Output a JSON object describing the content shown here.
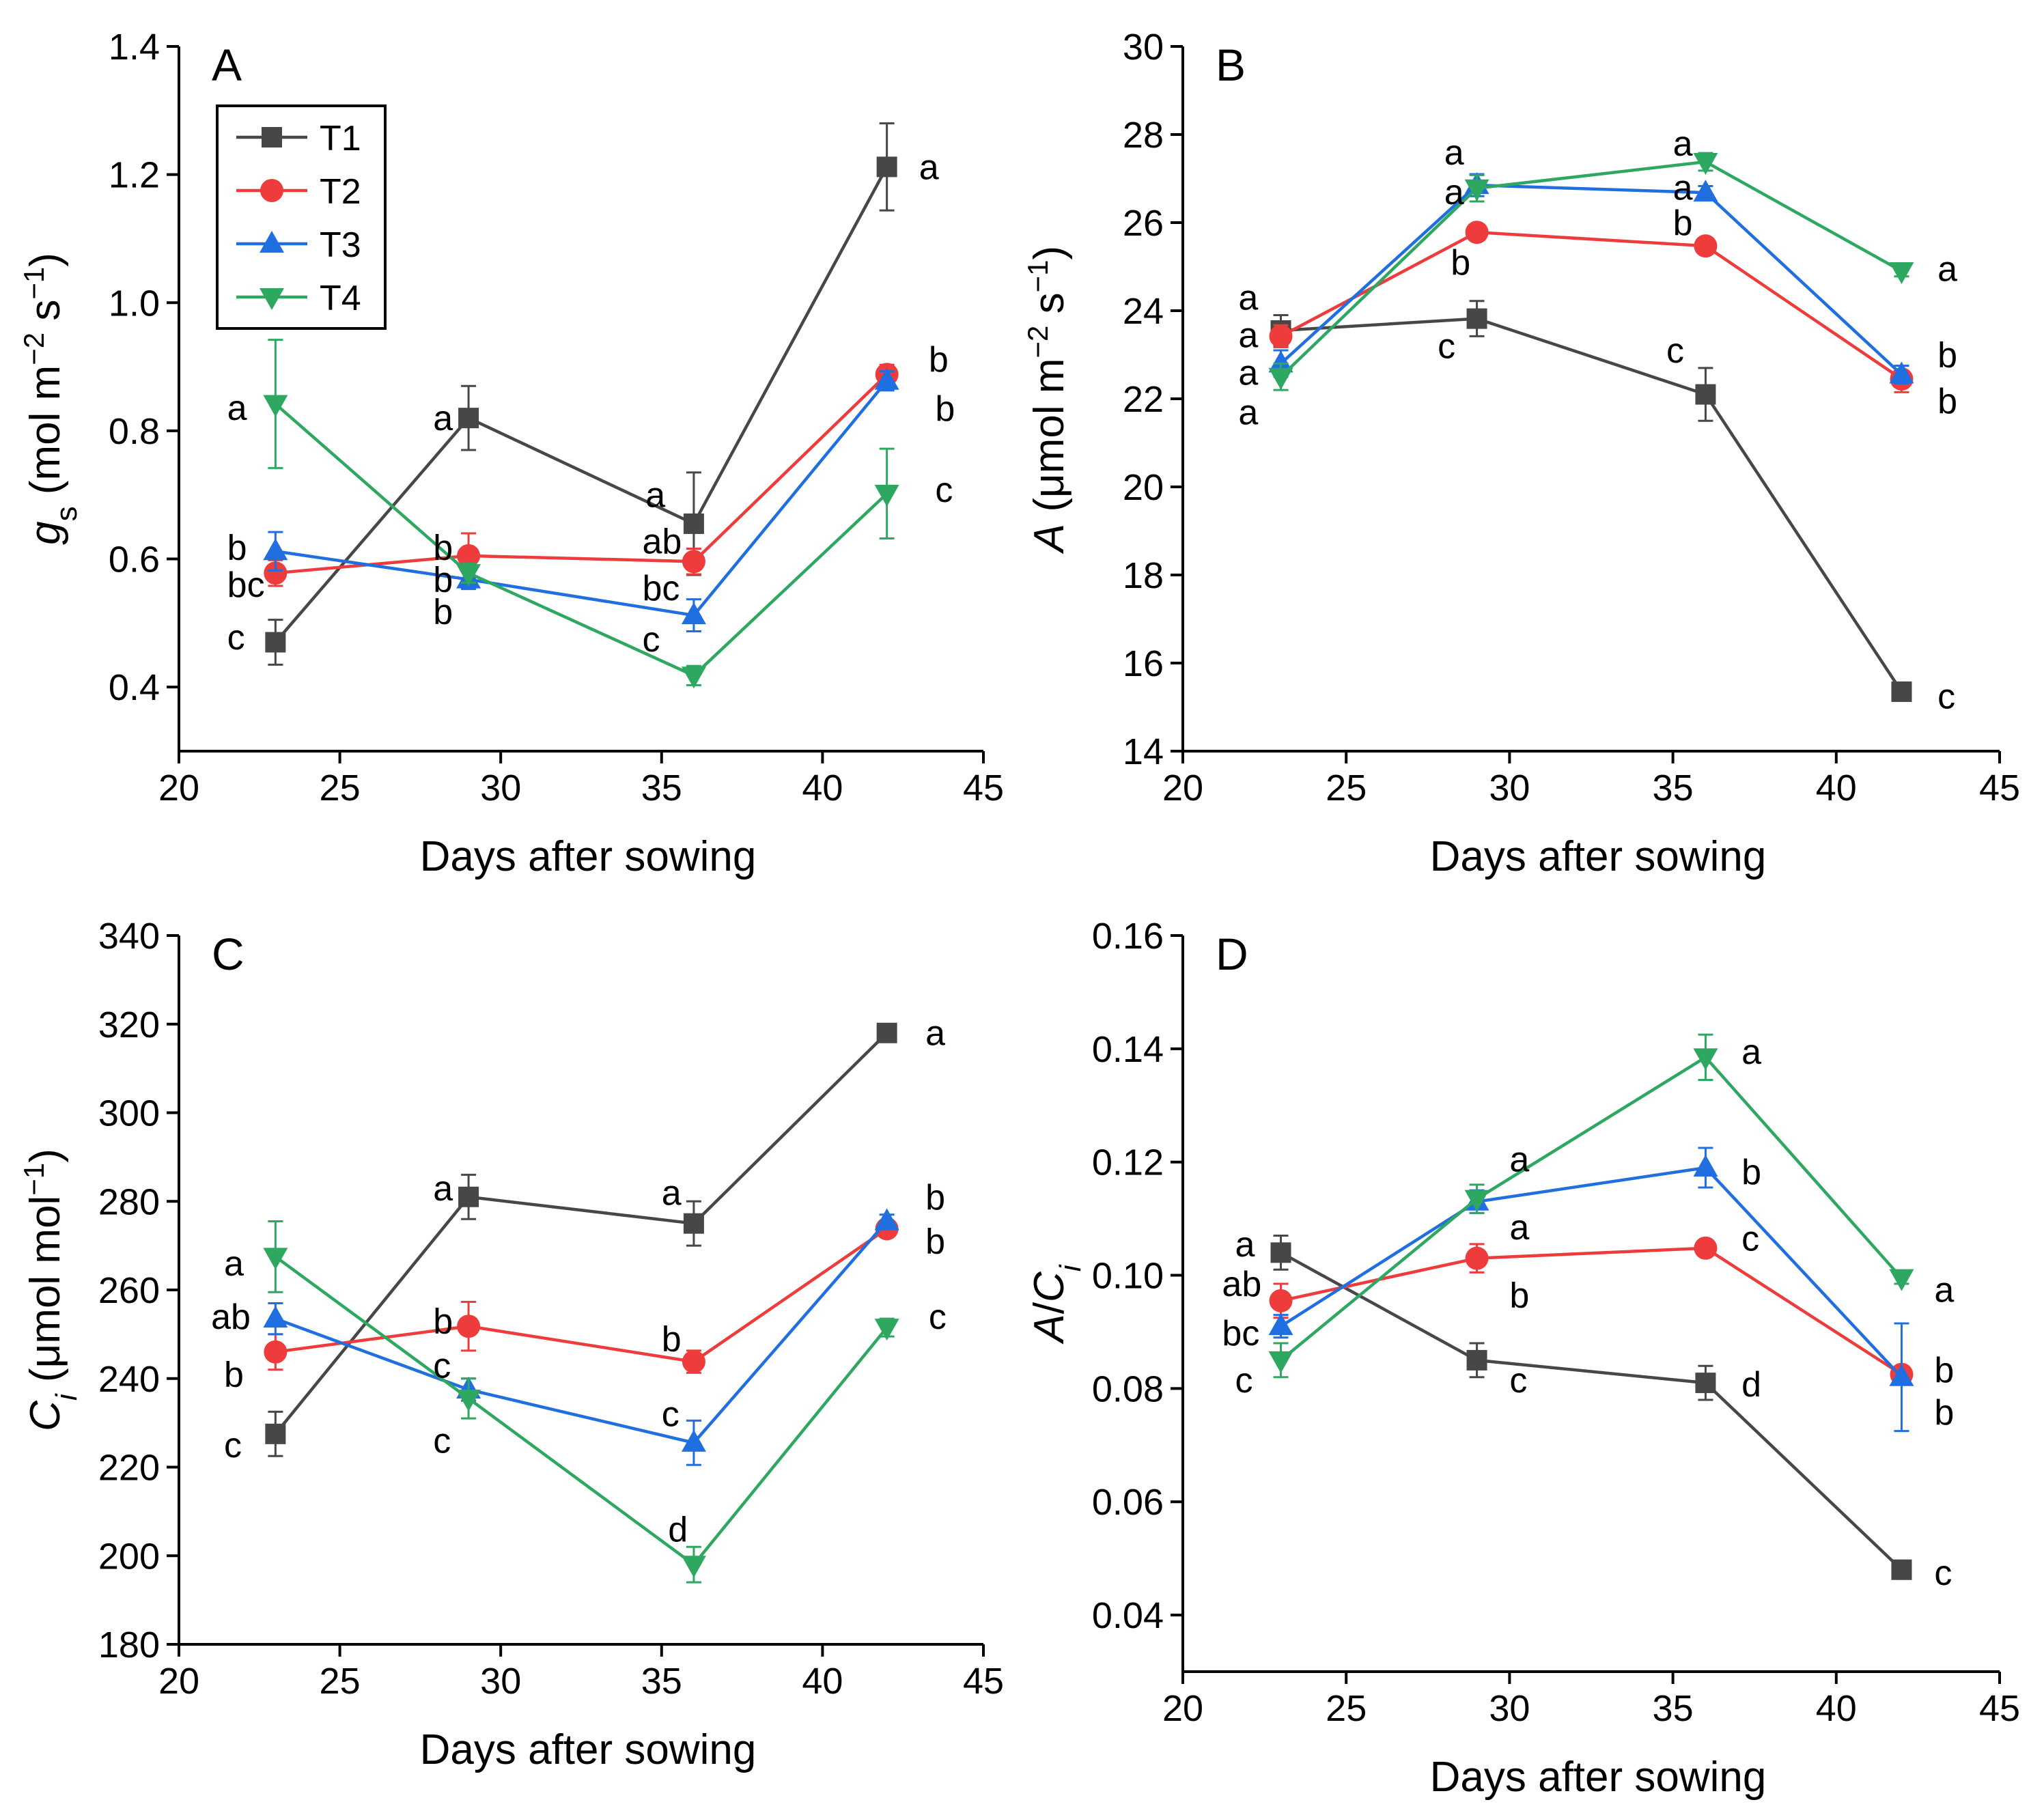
{
  "series_styles": [
    {
      "name": "T1",
      "color": "#474747",
      "marker": "square"
    },
    {
      "name": "T2",
      "color": "#ee3b3b",
      "marker": "circle"
    },
    {
      "name": "T3",
      "color": "#1f6fe0",
      "marker": "triangle-up"
    },
    {
      "name": "T4",
      "color": "#2ea860",
      "marker": "triangle-down"
    }
  ],
  "chart_data": [
    {
      "panel": "A",
      "type": "line",
      "xlabel": "Days after sowing",
      "ylabel_parts": [
        "g",
        "s",
        " (mol m",
        "−2",
        " s",
        "−1",
        ")"
      ],
      "xlim": [
        20,
        45
      ],
      "ylim": [
        0.3,
        1.4
      ],
      "xticks": [
        20,
        25,
        30,
        35,
        40,
        45
      ],
      "yticks": [
        0.4,
        0.6,
        0.8,
        1.0,
        1.2,
        1.4
      ],
      "yticklabels": [
        "0.4",
        "0.6",
        "0.8",
        "1.0",
        "1.2",
        "1.4"
      ],
      "legend": {
        "position": "top-left",
        "entries": [
          "T1",
          "T2",
          "T3",
          "T4"
        ]
      },
      "x": [
        23,
        29,
        36,
        42
      ],
      "series": [
        {
          "name": "T1",
          "values": [
            0.47,
            0.82,
            0.655,
            1.212
          ],
          "errors": [
            0.035,
            0.05,
            0.08,
            0.068
          ]
        },
        {
          "name": "T2",
          "values": [
            0.578,
            0.605,
            0.596,
            0.888
          ],
          "errors": [
            0.02,
            0.035,
            0.02,
            0.015
          ]
        },
        {
          "name": "T3",
          "values": [
            0.612,
            0.568,
            0.512,
            0.878
          ],
          "errors": [
            0.03,
            0.015,
            0.025,
            0.015
          ]
        },
        {
          "name": "T4",
          "values": [
            0.842,
            0.578,
            0.418,
            0.702
          ],
          "errors": [
            0.1,
            0.015,
            0.015,
            0.07
          ]
        }
      ],
      "annotations": [
        {
          "text": "a",
          "x": 21.5,
          "y": 0.836
        },
        {
          "text": "b",
          "x": 21.5,
          "y": 0.618
        },
        {
          "text": "bc",
          "x": 21.5,
          "y": 0.56
        },
        {
          "text": "c",
          "x": 21.5,
          "y": 0.478
        },
        {
          "text": "a",
          "x": 27.9,
          "y": 0.82
        },
        {
          "text": "b",
          "x": 27.9,
          "y": 0.618
        },
        {
          "text": "b",
          "x": 27.9,
          "y": 0.568
        },
        {
          "text": "b",
          "x": 27.9,
          "y": 0.518
        },
        {
          "text": "a",
          "x": 34.5,
          "y": 0.7
        },
        {
          "text": "ab",
          "x": 34.4,
          "y": 0.628
        },
        {
          "text": "bc",
          "x": 34.4,
          "y": 0.555
        },
        {
          "text": "c",
          "x": 34.4,
          "y": 0.475
        },
        {
          "text": "a",
          "x": 43.0,
          "y": 1.212
        },
        {
          "text": "b",
          "x": 43.3,
          "y": 0.912
        },
        {
          "text": "b",
          "x": 43.5,
          "y": 0.835
        },
        {
          "text": "c",
          "x": 43.5,
          "y": 0.708
        }
      ]
    },
    {
      "panel": "B",
      "type": "line",
      "xlabel": "Days after sowing",
      "ylabel_parts": [
        "A",
        " (μmol m",
        "−2",
        " s",
        "−1",
        ")"
      ],
      "xlim": [
        20,
        45
      ],
      "ylim": [
        14,
        30
      ],
      "xticks": [
        20,
        25,
        30,
        35,
        40,
        45
      ],
      "yticks": [
        14,
        16,
        18,
        20,
        22,
        24,
        26,
        28,
        30
      ],
      "yticklabels": [
        "14",
        "16",
        "18",
        "20",
        "22",
        "24",
        "26",
        "28",
        "30"
      ],
      "x": [
        23,
        29,
        36,
        42
      ],
      "series": [
        {
          "name": "T1",
          "values": [
            23.55,
            23.82,
            22.1,
            15.35
          ],
          "errors": [
            0.35,
            0.4,
            0.6,
            0.15
          ]
        },
        {
          "name": "T2",
          "values": [
            23.42,
            25.78,
            25.47,
            22.45
          ],
          "errors": [
            0.25,
            0.12,
            0.12,
            0.3
          ]
        },
        {
          "name": "T3",
          "values": [
            22.8,
            26.85,
            26.68,
            22.55
          ],
          "errors": [
            0.3,
            0.25,
            0.15,
            0.2
          ]
        },
        {
          "name": "T4",
          "values": [
            22.5,
            26.78,
            27.38,
            24.9
          ],
          "errors": [
            0.3,
            0.3,
            0.2,
            0.12
          ]
        }
      ],
      "annotations": [
        {
          "text": "a",
          "x": 21.7,
          "y": 24.3
        },
        {
          "text": "a",
          "x": 21.7,
          "y": 23.45
        },
        {
          "text": "a",
          "x": 21.7,
          "y": 22.6
        },
        {
          "text": "a",
          "x": 21.7,
          "y": 21.7
        },
        {
          "text": "a",
          "x": 28.0,
          "y": 27.6
        },
        {
          "text": "a",
          "x": 28.0,
          "y": 26.7
        },
        {
          "text": "b",
          "x": 28.2,
          "y": 25.1
        },
        {
          "text": "c",
          "x": 27.8,
          "y": 23.2
        },
        {
          "text": "a",
          "x": 35.0,
          "y": 27.8
        },
        {
          "text": "a",
          "x": 35.0,
          "y": 26.8
        },
        {
          "text": "b",
          "x": 35.0,
          "y": 26.0
        },
        {
          "text": "c",
          "x": 34.8,
          "y": 23.1
        },
        {
          "text": "a",
          "x": 43.1,
          "y": 24.95
        },
        {
          "text": "b",
          "x": 43.1,
          "y": 23.0
        },
        {
          "text": "b",
          "x": 43.1,
          "y": 21.95
        },
        {
          "text": "c",
          "x": 43.1,
          "y": 15.25
        }
      ]
    },
    {
      "panel": "C",
      "type": "line",
      "xlabel": "Days after sowing",
      "ylabel_parts": [
        "C",
        "i",
        " (μmol mol",
        "−1",
        ")"
      ],
      "xlim": [
        20,
        45
      ],
      "ylim": [
        180,
        340
      ],
      "xticks": [
        20,
        25,
        30,
        35,
        40,
        45
      ],
      "yticks": [
        180,
        200,
        220,
        240,
        260,
        280,
        300,
        320,
        340
      ],
      "yticklabels": [
        "180",
        "200",
        "220",
        "240",
        "260",
        "280",
        "300",
        "320",
        "340"
      ],
      "x": [
        23,
        29,
        36,
        42
      ],
      "series": [
        {
          "name": "T1",
          "values": [
            227.5,
            281,
            275,
            318
          ],
          "errors": [
            5,
            5,
            5,
            1.5
          ]
        },
        {
          "name": "T2",
          "values": [
            246,
            251.8,
            243.8,
            273.8
          ],
          "errors": [
            4,
            5.5,
            2.5,
            1.5
          ]
        },
        {
          "name": "T3",
          "values": [
            253.5,
            237.5,
            225.5,
            275.5
          ],
          "errors": [
            3.5,
            2.5,
            5,
            1.5
          ]
        },
        {
          "name": "T4",
          "values": [
            267.5,
            235.5,
            198,
            251.5
          ],
          "errors": [
            8,
            4.5,
            4,
            2
          ]
        }
      ],
      "annotations": [
        {
          "text": "a",
          "x": 21.4,
          "y": 266
        },
        {
          "text": "ab",
          "x": 21.0,
          "y": 254
        },
        {
          "text": "b",
          "x": 21.4,
          "y": 241
        },
        {
          "text": "c",
          "x": 21.4,
          "y": 225
        },
        {
          "text": "a",
          "x": 27.9,
          "y": 283
        },
        {
          "text": "b",
          "x": 27.9,
          "y": 253
        },
        {
          "text": "c",
          "x": 27.9,
          "y": 243
        },
        {
          "text": "c",
          "x": 27.9,
          "y": 226
        },
        {
          "text": "a",
          "x": 35.0,
          "y": 282
        },
        {
          "text": "b",
          "x": 35.0,
          "y": 249
        },
        {
          "text": "c",
          "x": 35.0,
          "y": 232
        },
        {
          "text": "d",
          "x": 35.2,
          "y": 206
        },
        {
          "text": "a",
          "x": 43.2,
          "y": 318
        },
        {
          "text": "b",
          "x": 43.2,
          "y": 281
        },
        {
          "text": "b",
          "x": 43.2,
          "y": 271
        },
        {
          "text": "c",
          "x": 43.3,
          "y": 254
        }
      ]
    },
    {
      "panel": "D",
      "type": "line",
      "xlabel": "Days after sowing",
      "ylabel_parts": [
        "A",
        "/",
        "C",
        "i"
      ],
      "xlim": [
        20,
        45
      ],
      "ylim": [
        0.03,
        0.16
      ],
      "xticks": [
        20,
        25,
        30,
        35,
        40,
        45
      ],
      "yticks": [
        0.04,
        0.06,
        0.08,
        0.1,
        0.12,
        0.14,
        0.16
      ],
      "yticklabels": [
        "0.04",
        "0.06",
        "0.08",
        "0.10",
        "0.12",
        "0.14",
        "0.16"
      ],
      "x": [
        23,
        29,
        36,
        42
      ],
      "series": [
        {
          "name": "T1",
          "values": [
            0.104,
            0.085,
            0.081,
            0.048
          ],
          "errors": [
            0.003,
            0.003,
            0.003,
            0.001
          ]
        },
        {
          "name": "T2",
          "values": [
            0.0955,
            0.103,
            0.1048,
            0.0825
          ],
          "errors": [
            0.003,
            0.0025,
            0.001,
            0.001
          ]
        },
        {
          "name": "T3",
          "values": [
            0.091,
            0.113,
            0.119,
            0.082
          ],
          "errors": [
            0.002,
            0.002,
            0.0035,
            0.0095
          ]
        },
        {
          "name": "T4",
          "values": [
            0.085,
            0.1135,
            0.1385,
            0.0995
          ],
          "errors": [
            0.003,
            0.0025,
            0.004,
            0.001
          ]
        }
      ],
      "annotations": [
        {
          "text": "a",
          "x": 21.6,
          "y": 0.1055
        },
        {
          "text": "ab",
          "x": 21.2,
          "y": 0.0985
        },
        {
          "text": "bc",
          "x": 21.2,
          "y": 0.0898
        },
        {
          "text": "c",
          "x": 21.6,
          "y": 0.0815
        },
        {
          "text": "a",
          "x": 30.0,
          "y": 0.1205
        },
        {
          "text": "a",
          "x": 30.0,
          "y": 0.1085
        },
        {
          "text": "b",
          "x": 30.0,
          "y": 0.0965
        },
        {
          "text": "c",
          "x": 30.0,
          "y": 0.0815
        },
        {
          "text": "a",
          "x": 37.1,
          "y": 0.1395
        },
        {
          "text": "b",
          "x": 37.1,
          "y": 0.1183
        },
        {
          "text": "c",
          "x": 37.1,
          "y": 0.1065
        },
        {
          "text": "d",
          "x": 37.1,
          "y": 0.0808
        },
        {
          "text": "a",
          "x": 43.0,
          "y": 0.0975
        },
        {
          "text": "b",
          "x": 43.0,
          "y": 0.0833
        },
        {
          "text": "b",
          "x": 43.0,
          "y": 0.0758
        },
        {
          "text": "c",
          "x": 43.0,
          "y": 0.0475
        }
      ]
    }
  ]
}
